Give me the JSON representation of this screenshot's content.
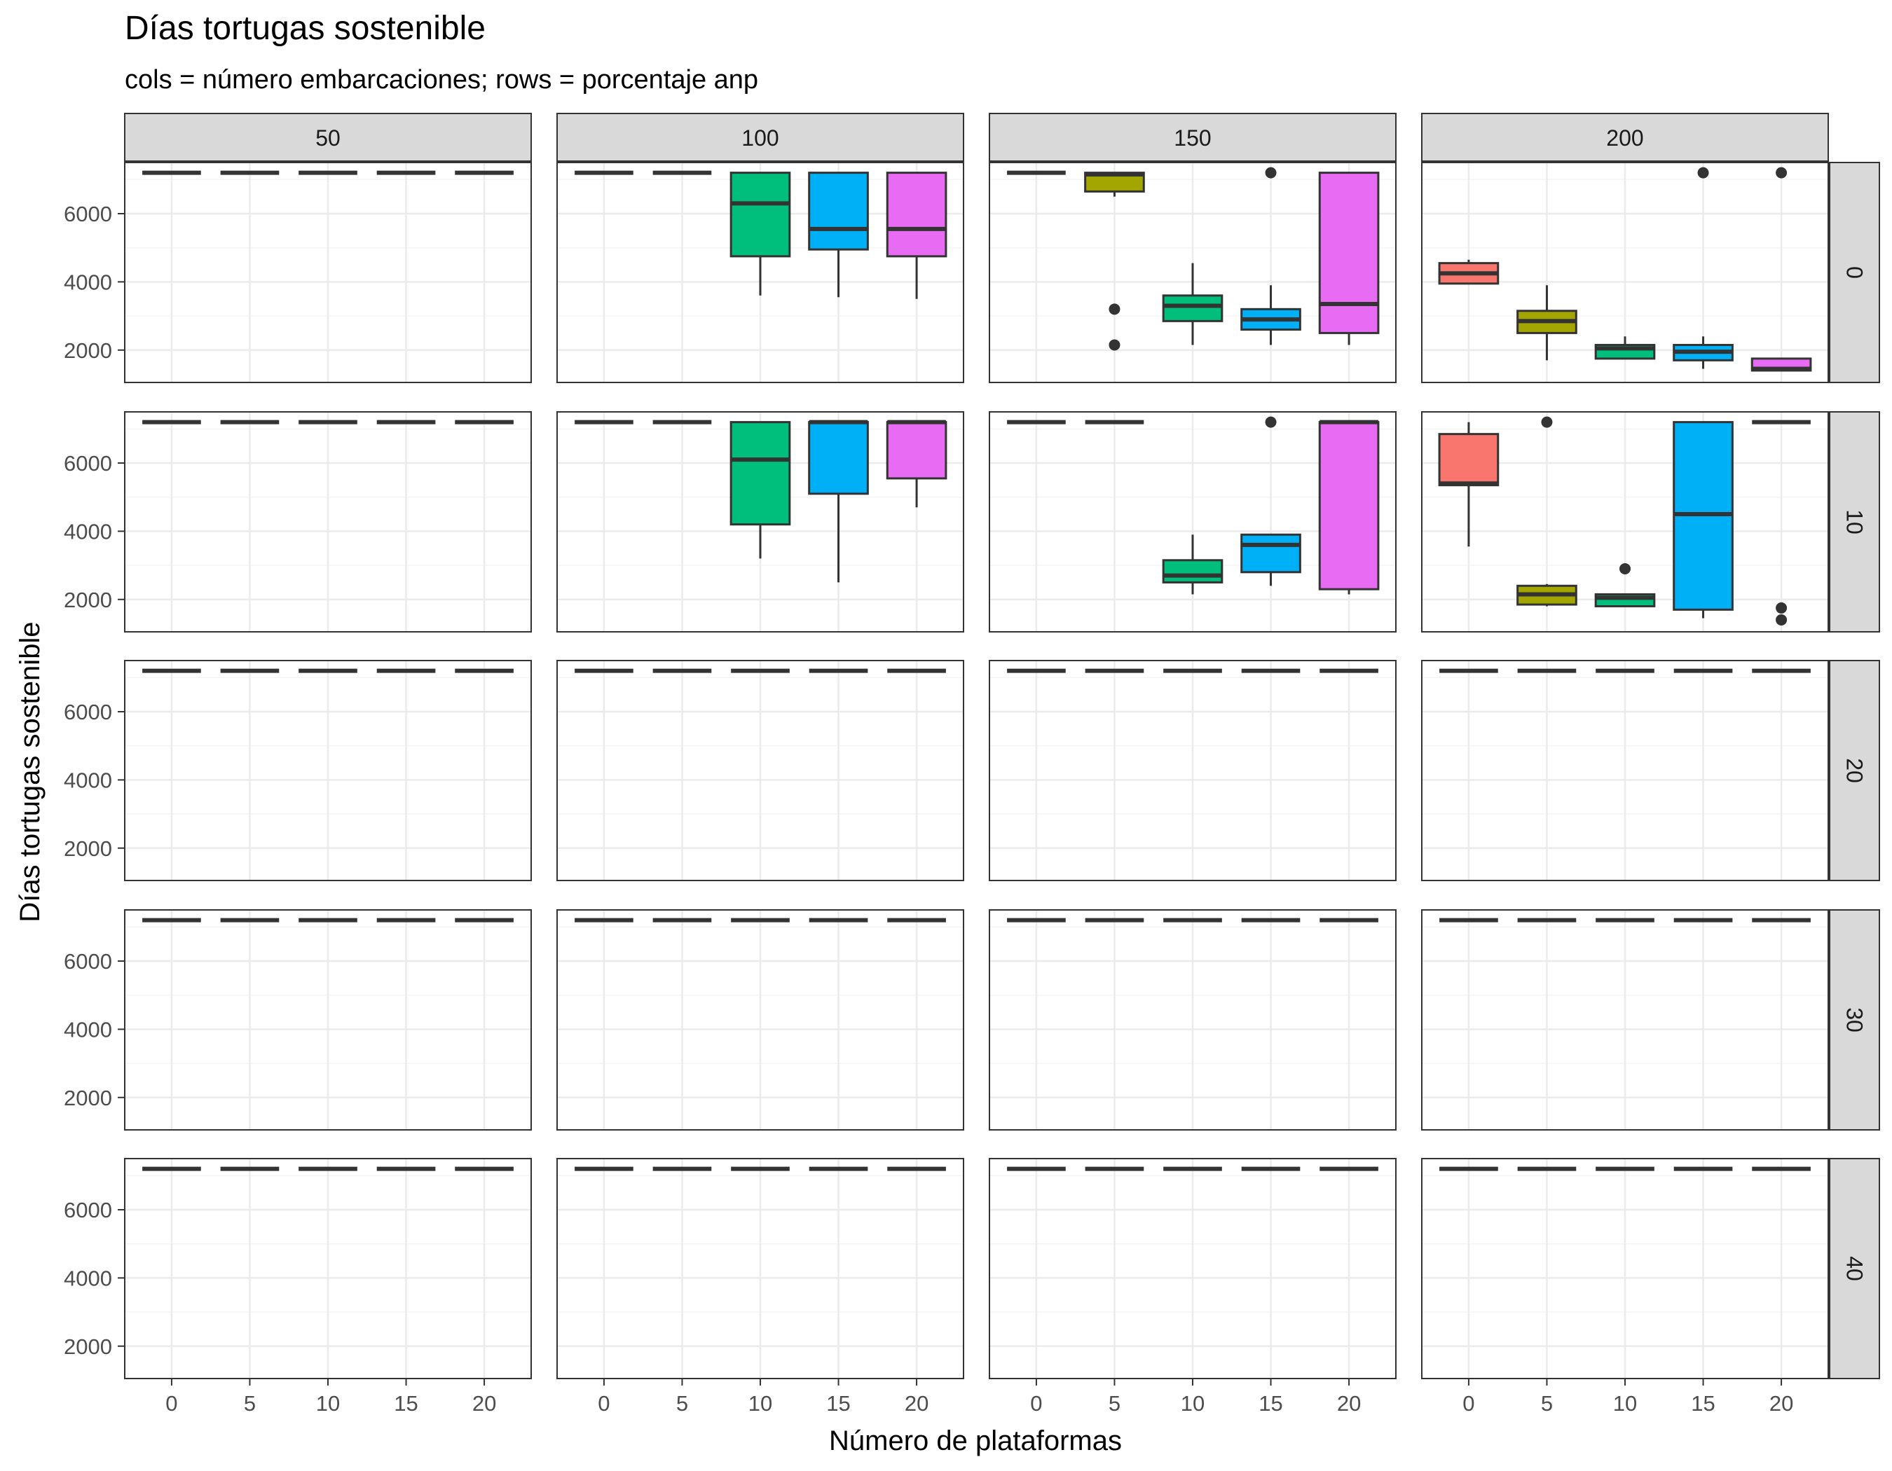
{
  "chart_data": {
    "type": "box",
    "title": "Días tortugas sostenible",
    "subtitle": "cols = número embarcaciones; rows = porcentaje anp",
    "xlabel": "Número de plataformas",
    "ylabel": "Días tortugas sostenible",
    "x_ticks": [
      "0",
      "5",
      "10",
      "15",
      "20"
    ],
    "y_ticks": [
      2000,
      4000,
      6000
    ],
    "ylim": [
      1050,
      7500
    ],
    "grid": true,
    "legend": "none",
    "facet_cols": [
      "50",
      "100",
      "150",
      "200"
    ],
    "facet_rows": [
      "0",
      "10",
      "20",
      "30",
      "40"
    ],
    "colors": {
      "0": "#F8766D",
      "5": "#A3A500",
      "10": "#00BF7D",
      "15": "#00B0F6",
      "20": "#E76BF3",
      "box_line": "#333333",
      "strip_fill": "#D9D9D9",
      "grid": "#EBEBEB",
      "panel_border": "#333333"
    },
    "panels": [
      {
        "col": "50",
        "row": "0",
        "boxes": [
          {
            "x": 0,
            "min": 7200,
            "q1": 7200,
            "median": 7200,
            "q3": 7200,
            "max": 7200,
            "outliers": []
          },
          {
            "x": 5,
            "min": 7200,
            "q1": 7200,
            "median": 7200,
            "q3": 7200,
            "max": 7200,
            "outliers": []
          },
          {
            "x": 10,
            "min": 7200,
            "q1": 7200,
            "median": 7200,
            "q3": 7200,
            "max": 7200,
            "outliers": []
          },
          {
            "x": 15,
            "min": 7200,
            "q1": 7200,
            "median": 7200,
            "q3": 7200,
            "max": 7200,
            "outliers": []
          },
          {
            "x": 20,
            "min": 7200,
            "q1": 7200,
            "median": 7200,
            "q3": 7200,
            "max": 7200,
            "outliers": []
          }
        ]
      },
      {
        "col": "100",
        "row": "0",
        "boxes": [
          {
            "x": 0,
            "min": 7200,
            "q1": 7200,
            "median": 7200,
            "q3": 7200,
            "max": 7200,
            "outliers": []
          },
          {
            "x": 5,
            "min": 7200,
            "q1": 7200,
            "median": 7200,
            "q3": 7200,
            "max": 7200,
            "outliers": []
          },
          {
            "x": 10,
            "min": 3600,
            "q1": 4750,
            "median": 6300,
            "q3": 7200,
            "max": 7200,
            "outliers": []
          },
          {
            "x": 15,
            "min": 3550,
            "q1": 4950,
            "median": 5550,
            "q3": 7200,
            "max": 7200,
            "outliers": []
          },
          {
            "x": 20,
            "min": 3500,
            "q1": 4750,
            "median": 5550,
            "q3": 7200,
            "max": 7200,
            "outliers": []
          }
        ]
      },
      {
        "col": "150",
        "row": "0",
        "boxes": [
          {
            "x": 0,
            "min": 7200,
            "q1": 7200,
            "median": 7200,
            "q3": 7200,
            "max": 7200,
            "outliers": []
          },
          {
            "x": 5,
            "min": 6500,
            "q1": 6650,
            "median": 7150,
            "q3": 7200,
            "max": 7200,
            "outliers": [
              3200,
              2150
            ]
          },
          {
            "x": 10,
            "min": 2150,
            "q1": 2850,
            "median": 3300,
            "q3": 3600,
            "max": 4550,
            "outliers": []
          },
          {
            "x": 15,
            "min": 2150,
            "q1": 2600,
            "median": 2900,
            "q3": 3200,
            "max": 3900,
            "outliers": [
              7200
            ]
          },
          {
            "x": 20,
            "min": 2150,
            "q1": 2500,
            "median": 3350,
            "q3": 7200,
            "max": 7200,
            "outliers": []
          }
        ]
      },
      {
        "col": "200",
        "row": "0",
        "boxes": [
          {
            "x": 0,
            "min": 3950,
            "q1": 3950,
            "median": 4250,
            "q3": 4550,
            "max": 4650,
            "outliers": []
          },
          {
            "x": 5,
            "min": 1700,
            "q1": 2500,
            "median": 2850,
            "q3": 3150,
            "max": 3900,
            "outliers": []
          },
          {
            "x": 10,
            "min": 1750,
            "q1": 1750,
            "median": 2050,
            "q3": 2150,
            "max": 2400,
            "outliers": []
          },
          {
            "x": 15,
            "min": 1450,
            "q1": 1700,
            "median": 1950,
            "q3": 2150,
            "max": 2400,
            "outliers": [
              7200
            ]
          },
          {
            "x": 20,
            "min": 1400,
            "q1": 1400,
            "median": 1450,
            "q3": 1750,
            "max": 1750,
            "outliers": [
              7200
            ]
          }
        ]
      },
      {
        "col": "50",
        "row": "10",
        "boxes": [
          {
            "x": 0,
            "min": 7200,
            "q1": 7200,
            "median": 7200,
            "q3": 7200,
            "max": 7200,
            "outliers": []
          },
          {
            "x": 5,
            "min": 7200,
            "q1": 7200,
            "median": 7200,
            "q3": 7200,
            "max": 7200,
            "outliers": []
          },
          {
            "x": 10,
            "min": 7200,
            "q1": 7200,
            "median": 7200,
            "q3": 7200,
            "max": 7200,
            "outliers": []
          },
          {
            "x": 15,
            "min": 7200,
            "q1": 7200,
            "median": 7200,
            "q3": 7200,
            "max": 7200,
            "outliers": []
          },
          {
            "x": 20,
            "min": 7200,
            "q1": 7200,
            "median": 7200,
            "q3": 7200,
            "max": 7200,
            "outliers": []
          }
        ]
      },
      {
        "col": "100",
        "row": "10",
        "boxes": [
          {
            "x": 0,
            "min": 7200,
            "q1": 7200,
            "median": 7200,
            "q3": 7200,
            "max": 7200,
            "outliers": []
          },
          {
            "x": 5,
            "min": 7200,
            "q1": 7200,
            "median": 7200,
            "q3": 7200,
            "max": 7200,
            "outliers": []
          },
          {
            "x": 10,
            "min": 3200,
            "q1": 4200,
            "median": 6100,
            "q3": 7200,
            "max": 7200,
            "outliers": []
          },
          {
            "x": 15,
            "min": 2500,
            "q1": 5100,
            "median": 7200,
            "q3": 7200,
            "max": 7200,
            "outliers": []
          },
          {
            "x": 20,
            "min": 4700,
            "q1": 5550,
            "median": 7200,
            "q3": 7200,
            "max": 7200,
            "outliers": []
          }
        ]
      },
      {
        "col": "150",
        "row": "10",
        "boxes": [
          {
            "x": 0,
            "min": 7200,
            "q1": 7200,
            "median": 7200,
            "q3": 7200,
            "max": 7200,
            "outliers": []
          },
          {
            "x": 5,
            "min": 7200,
            "q1": 7200,
            "median": 7200,
            "q3": 7200,
            "max": 7200,
            "outliers": []
          },
          {
            "x": 10,
            "min": 2150,
            "q1": 2500,
            "median": 2700,
            "q3": 3150,
            "max": 3900,
            "outliers": []
          },
          {
            "x": 15,
            "min": 2400,
            "q1": 2800,
            "median": 3600,
            "q3": 3900,
            "max": 3900,
            "outliers": [
              7200
            ]
          },
          {
            "x": 20,
            "min": 2150,
            "q1": 2300,
            "median": 7200,
            "q3": 7200,
            "max": 7200,
            "outliers": []
          }
        ]
      },
      {
        "col": "200",
        "row": "10",
        "boxes": [
          {
            "x": 0,
            "min": 3550,
            "q1": 5350,
            "median": 5400,
            "q3": 6850,
            "max": 7200,
            "outliers": []
          },
          {
            "x": 5,
            "min": 1800,
            "q1": 1850,
            "median": 2150,
            "q3": 2400,
            "max": 2450,
            "outliers": [
              7200
            ]
          },
          {
            "x": 10,
            "min": 1800,
            "q1": 1800,
            "median": 2050,
            "q3": 2150,
            "max": 2150,
            "outliers": [
              2900
            ]
          },
          {
            "x": 15,
            "min": 1450,
            "q1": 1700,
            "median": 4500,
            "q3": 7200,
            "max": 7200,
            "outliers": []
          },
          {
            "x": 20,
            "min": 7200,
            "q1": 7200,
            "median": 7200,
            "q3": 7200,
            "max": 7200,
            "outliers": [
              1750,
              1400
            ]
          }
        ]
      },
      {
        "col": "50",
        "row": "20",
        "all_constant": 7200
      },
      {
        "col": "100",
        "row": "20",
        "all_constant": 7200
      },
      {
        "col": "150",
        "row": "20",
        "all_constant": 7200
      },
      {
        "col": "200",
        "row": "20",
        "all_constant": 7200
      },
      {
        "col": "50",
        "row": "30",
        "all_constant": 7200
      },
      {
        "col": "100",
        "row": "30",
        "all_constant": 7200
      },
      {
        "col": "150",
        "row": "30",
        "all_constant": 7200
      },
      {
        "col": "200",
        "row": "30",
        "all_constant": 7200
      },
      {
        "col": "50",
        "row": "40",
        "all_constant": 7200
      },
      {
        "col": "100",
        "row": "40",
        "all_constant": 7200
      },
      {
        "col": "150",
        "row": "40",
        "all_constant": 7200
      },
      {
        "col": "200",
        "row": "40",
        "all_constant": 7200
      }
    ]
  }
}
